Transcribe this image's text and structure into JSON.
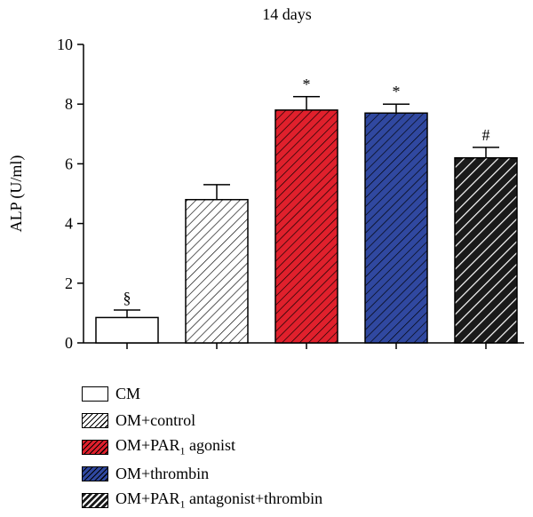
{
  "chart_data": {
    "type": "bar",
    "title": "14 days",
    "xlabel": "",
    "ylabel": "ALP (U/ml)",
    "ylim": [
      0,
      10
    ],
    "yticks": [
      "0",
      "2",
      "4",
      "6",
      "8",
      "10"
    ],
    "categories": [
      "CM",
      "OM+control",
      "OM+PAR1 agonist",
      "OM+thrombin",
      "OM+PAR1 antagonist+thrombin"
    ],
    "values": [
      0.85,
      4.8,
      7.8,
      7.7,
      6.2
    ],
    "errors": [
      0.25,
      0.5,
      0.45,
      0.3,
      0.35
    ],
    "annotations": [
      "§",
      "",
      "*",
      "*",
      "#"
    ],
    "grid": false,
    "legend_position": "bottom-left",
    "bar_styles": [
      {
        "fill": "#ffffff",
        "hatch": "none"
      },
      {
        "fill": "#ffffff",
        "hatch": "#000000"
      },
      {
        "fill": "#e0202c",
        "hatch": "#000000"
      },
      {
        "fill": "#3048a0",
        "hatch": "#000000"
      },
      {
        "fill": "#1a1a1a",
        "hatch": "#ffffff"
      }
    ],
    "legend": [
      {
        "pre": "CM",
        "sub": "",
        "post": ""
      },
      {
        "pre": "OM+control",
        "sub": "",
        "post": ""
      },
      {
        "pre": "OM+PAR",
        "sub": "1",
        "post": " agonist"
      },
      {
        "pre": "OM+thrombin",
        "sub": "",
        "post": ""
      },
      {
        "pre": "OM+PAR",
        "sub": "1",
        "post": " antagonist+thrombin"
      }
    ]
  }
}
